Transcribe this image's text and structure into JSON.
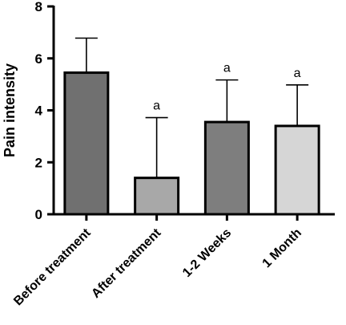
{
  "chart_data": {
    "type": "bar",
    "categories": [
      "Before treatment",
      "After treatment",
      "1-2 Weeks",
      "1 Month"
    ],
    "values": [
      5.45,
      1.4,
      3.55,
      3.4
    ],
    "error_upper": [
      6.78,
      3.72,
      5.17,
      4.98
    ],
    "annotations": [
      "",
      "a",
      "a",
      "a"
    ],
    "bar_colors": [
      "#707070",
      "#a8a8a8",
      "#7e7e7e",
      "#d6d6d6"
    ],
    "xlabel": "",
    "ylabel": "Pain intensity",
    "ylim": [
      0,
      8
    ],
    "yticks": [
      0,
      2,
      4,
      6,
      8
    ],
    "grid": false
  }
}
